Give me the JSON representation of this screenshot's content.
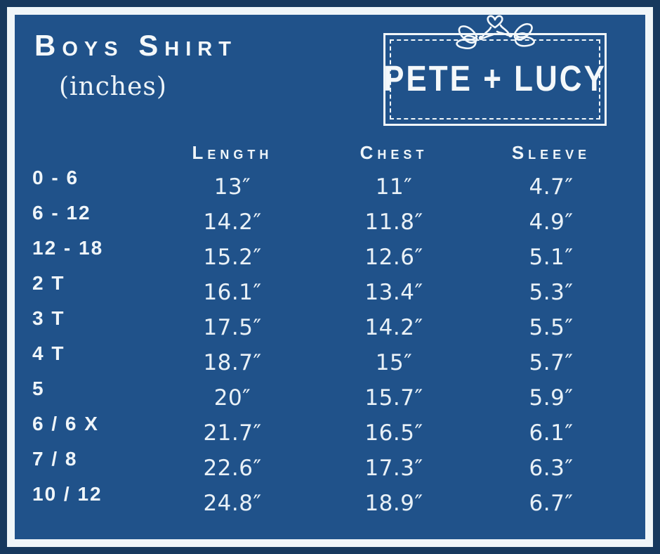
{
  "title": "Boys Shirt",
  "subtitle": "(inches)",
  "brand": {
    "name": "PETE + LUCY"
  },
  "colors": {
    "background_navy": "#17395E",
    "panel_blue": "#20528A",
    "frame_white": "#F0F6F9",
    "text_white": "#F4F8FA"
  },
  "chart_data": {
    "type": "table",
    "title": "Boys Shirt (inches)",
    "headers": [
      "Length",
      "Chest",
      "Sleeve"
    ],
    "unit": "inches",
    "rows": [
      {
        "size": "0 - 6",
        "length": "13″",
        "chest": "11″",
        "sleeve": "4.7″"
      },
      {
        "size": "6 - 12",
        "length": "14.2″",
        "chest": "11.8″",
        "sleeve": "4.9″"
      },
      {
        "size": "12 - 18",
        "length": "15.2″",
        "chest": "12.6″",
        "sleeve": "5.1″"
      },
      {
        "size": "2 T",
        "length": "16.1″",
        "chest": "13.4″",
        "sleeve": "5.3″"
      },
      {
        "size": "3 T",
        "length": "17.5″",
        "chest": "14.2″",
        "sleeve": "5.5″"
      },
      {
        "size": "4 T",
        "length": "18.7″",
        "chest": "15″",
        "sleeve": "5.7″"
      },
      {
        "size": "5",
        "length": "20″",
        "chest": "15.7″",
        "sleeve": "5.9″"
      },
      {
        "size": "6 / 6 X",
        "length": "21.7″",
        "chest": "16.5″",
        "sleeve": "6.1″"
      },
      {
        "size": "7 / 8",
        "length": "22.6″",
        "chest": "17.3″",
        "sleeve": "6.3″"
      },
      {
        "size": "10 / 12",
        "length": "24.8″",
        "chest": "18.9″",
        "sleeve": "6.7″"
      }
    ]
  }
}
